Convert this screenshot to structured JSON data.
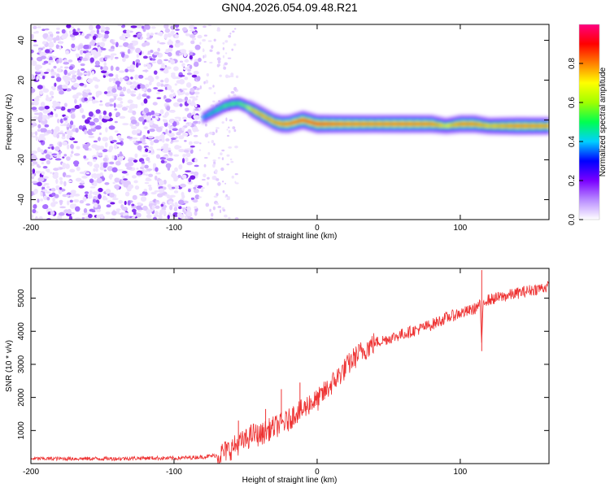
{
  "figure_title": "GN04.2026.054.09.48.R21",
  "colors": {
    "snr_line": "#ee3333",
    "scatter": "#7a2de6",
    "frame": "#000000"
  },
  "chart_data": [
    {
      "type": "heatmap",
      "title": "GN04.2026.054.09.48.R21",
      "xlabel": "Height of straight line (km)",
      "ylabel": "Frequency (Hz)",
      "xlim": [
        -200,
        162
      ],
      "ylim": [
        -50,
        48
      ],
      "xticks": [
        -200,
        -100,
        0,
        100
      ],
      "xtick_labels": [
        "-200",
        "-100",
        "0",
        "100"
      ],
      "yticks": [
        -40,
        -20,
        0,
        20,
        40
      ],
      "ytick_labels": [
        "-40",
        "-20",
        "0",
        "20",
        "40"
      ],
      "colorbar": {
        "label": "Normalized spectral amplitude",
        "range": [
          0,
          1
        ],
        "ticks": [
          0.0,
          0.2,
          0.4,
          0.6,
          0.8
        ],
        "tick_labels": [
          "0.0",
          "0.2",
          "0.4",
          "0.6",
          "0.8"
        ],
        "colormap": [
          "#ffffff",
          "#b98cff",
          "#7a00ff",
          "#0000ff",
          "#00d0ff",
          "#00ff50",
          "#a0ff00",
          "#ffff00",
          "#ff8000",
          "#ff0000",
          "#ff0080"
        ]
      },
      "noise_region": {
        "x_range": [
          -200,
          -82
        ],
        "sparse_x_range": [
          -82,
          -55
        ],
        "y_range": [
          -50,
          48
        ]
      },
      "ridge": {
        "x": [
          -80,
          -75,
          -70,
          -65,
          -60,
          -55,
          -50,
          -45,
          -40,
          -35,
          -30,
          -25,
          -20,
          -15,
          -10,
          -5,
          0,
          10,
          20,
          40,
          60,
          80,
          90,
          100,
          110,
          120,
          140,
          162
        ],
        "y": [
          1,
          3,
          5,
          7,
          8,
          8.5,
          7,
          5,
          3,
          1,
          -1,
          -2,
          -2,
          -1,
          0,
          -1,
          -2,
          -2,
          -2,
          -2,
          -2,
          -2,
          -3,
          -2,
          -2,
          -3,
          -3,
          -3
        ],
        "amplitude": [
          0.4,
          0.45,
          0.5,
          0.55,
          0.55,
          0.55,
          0.6,
          0.75,
          0.8,
          0.8,
          0.82,
          0.85,
          0.88,
          0.9,
          0.92,
          0.93,
          0.93,
          0.9,
          0.88,
          0.86,
          0.88,
          0.86,
          0.7,
          0.85,
          0.85,
          0.75,
          0.85,
          0.82
        ]
      }
    },
    {
      "type": "line",
      "xlabel": "Height of straight line (km)",
      "ylabel": "SNR (10 * v/v)",
      "xlim": [
        -200,
        162
      ],
      "ylim": [
        0,
        5900
      ],
      "xticks": [
        -200,
        -100,
        0,
        100
      ],
      "xtick_labels": [
        "-200",
        "-100",
        "0",
        "100"
      ],
      "yticks": [
        1000,
        2000,
        3000,
        4000,
        5000
      ],
      "ytick_labels": [
        "1000",
        "2000",
        "3000",
        "4000",
        "5000"
      ],
      "series": [
        {
          "name": "SNR",
          "x": [
            -200,
            -180,
            -160,
            -140,
            -120,
            -100,
            -90,
            -80,
            -70,
            -65,
            -60,
            -55,
            -50,
            -45,
            -40,
            -35,
            -30,
            -25,
            -20,
            -15,
            -10,
            -5,
            0,
            5,
            10,
            15,
            20,
            25,
            30,
            35,
            40,
            50,
            60,
            70,
            80,
            90,
            100,
            105,
            110,
            112,
            114,
            115,
            116,
            118,
            120,
            130,
            140,
            150,
            162
          ],
          "y": [
            150,
            150,
            150,
            150,
            170,
            160,
            180,
            200,
            250,
            350,
            450,
            600,
            700,
            900,
            850,
            1000,
            1100,
            1200,
            1300,
            1550,
            1600,
            1850,
            1900,
            2150,
            2400,
            2650,
            2900,
            3150,
            3350,
            3500,
            3650,
            3780,
            3920,
            4050,
            4200,
            4400,
            4550,
            4600,
            4680,
            4750,
            4800,
            3400,
            4900,
            4950,
            4950,
            5050,
            5150,
            5250,
            5350
          ]
        }
      ],
      "spikes": [
        {
          "x": -55,
          "y": 1300
        },
        {
          "x": -36,
          "y": 1650
        },
        {
          "x": -25,
          "y": 2250
        },
        {
          "x": -12,
          "y": 2450
        },
        {
          "x": 115,
          "y": 5850
        }
      ]
    }
  ]
}
